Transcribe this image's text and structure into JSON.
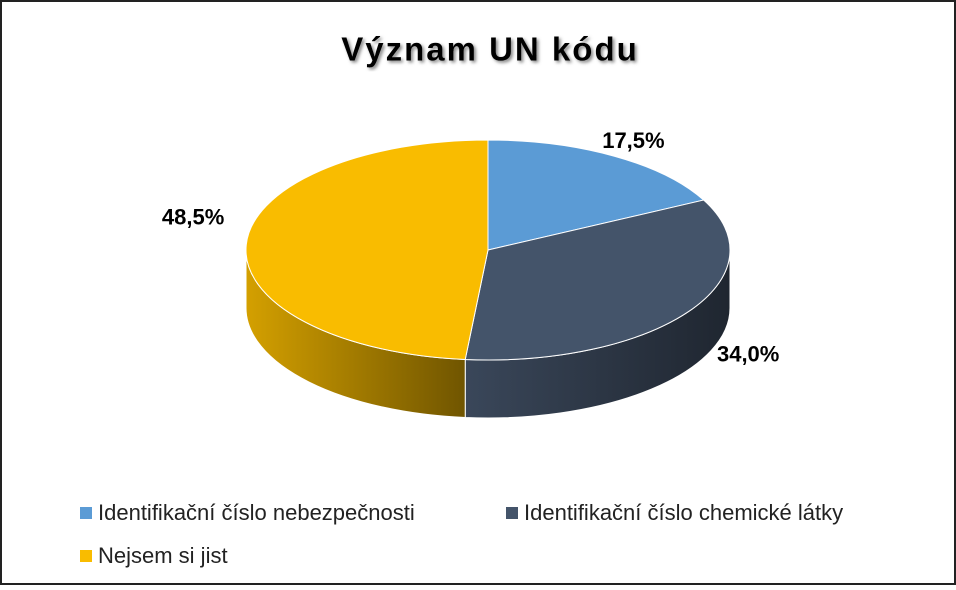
{
  "chart_data": {
    "type": "pie",
    "title": "Význam UN kódu",
    "categories": [
      "Identifikační číslo nebezpečnosti",
      "Identifikační číslo chemické látky",
      "Nejsem si jist"
    ],
    "values": [
      17.5,
      34.0,
      48.5
    ],
    "value_labels": [
      "17,5%",
      "34,0%",
      "48,5%"
    ],
    "colors": [
      "#5b9bd5",
      "#44546a",
      "#f9bc00"
    ],
    "legend": "bottom"
  }
}
